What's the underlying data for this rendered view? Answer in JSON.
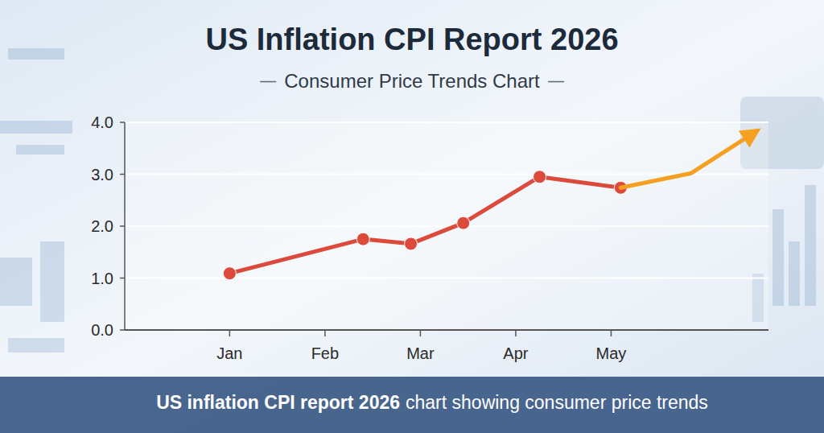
{
  "chart_data": {
    "type": "line",
    "title": "US Inflation CPI Report 2026",
    "subtitle": "Consumer Price Trends Chart",
    "caption": [
      "US inflation CPI report 2026",
      "chart showing consumer price trends"
    ],
    "xlim": [
      -0.1,
      6.65
    ],
    "xticks": [
      {
        "value": 1,
        "label": "Jan"
      },
      {
        "value": 2,
        "label": "Feb"
      },
      {
        "value": 3,
        "label": "Mar"
      },
      {
        "value": 4,
        "label": "Apr"
      },
      {
        "value": 5,
        "label": "May"
      }
    ],
    "ylim": [
      0,
      4
    ],
    "yticks": [
      {
        "value": 0,
        "label": "0.0"
      },
      {
        "value": 1,
        "label": "1.0"
      },
      {
        "value": 2,
        "label": "2.0"
      },
      {
        "value": 3,
        "label": "3.0"
      },
      {
        "value": 4,
        "label": "4.0"
      }
    ],
    "grid": true,
    "series": [
      {
        "color": "#dc4a3c",
        "marker": "circle",
        "x": [
          1,
          2.4,
          2.9,
          3.45,
          4.25,
          5.1
        ],
        "values": [
          1.09,
          1.75,
          1.66,
          2.06,
          2.95,
          2.74
        ]
      },
      {
        "color": "#f5a021",
        "marker": "arrow",
        "x": [
          5.1,
          5.84,
          6.5
        ],
        "values": [
          2.74,
          3.02,
          3.8
        ]
      }
    ]
  }
}
